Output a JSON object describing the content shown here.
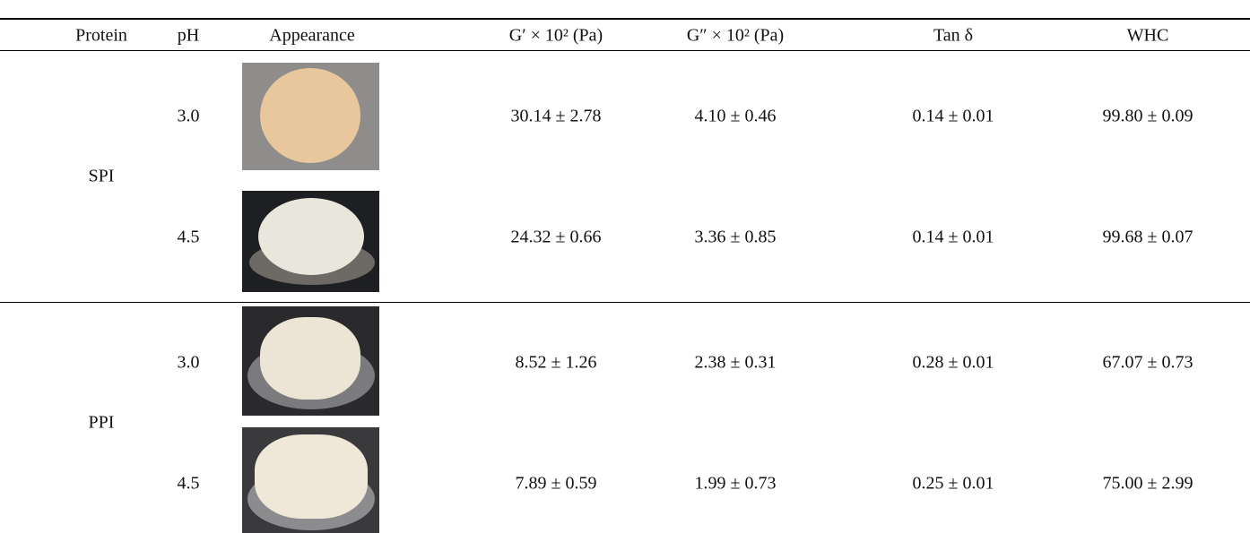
{
  "table": {
    "headers": [
      "Protein",
      "pH",
      "Appearance",
      "G′ × 10² (Pa)",
      "G″ × 10² (Pa)",
      "Tan δ",
      "WHC"
    ],
    "groups": [
      {
        "protein": "SPI",
        "rows": [
          [
            "3.0",
            "30.14 ± 2.78",
            "4.10 ± 0.46",
            "0.14 ± 0.01",
            "99.80 ± 0.09"
          ],
          [
            "4.5",
            "24.32 ± 0.66",
            "3.36 ± 0.85",
            "0.14 ± 0.01",
            "99.68 ± 0.07"
          ]
        ]
      },
      {
        "protein": "PPI",
        "rows": [
          [
            "3.0",
            "8.52 ± 1.26",
            "2.38 ± 0.31",
            "0.28 ± 0.01",
            "67.07 ± 0.73"
          ],
          [
            "4.5",
            "7.89 ± 0.59",
            "1.99 ± 0.73",
            "0.25 ± 0.01",
            "75.00 ± 2.99"
          ]
        ]
      }
    ]
  }
}
